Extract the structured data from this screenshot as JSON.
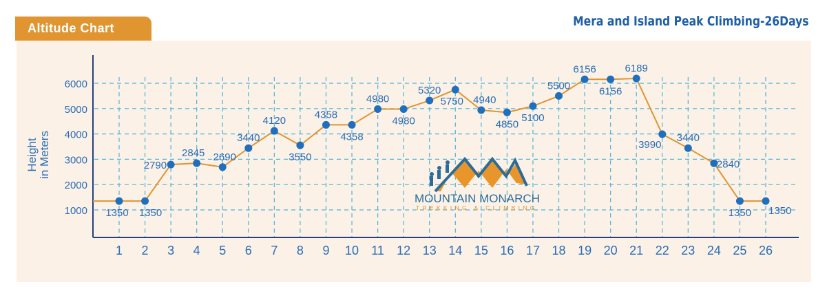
{
  "header": {
    "badge": "Altitude Chart",
    "title": "Mera and Island Peak Climbing-26Days"
  },
  "logo": {
    "name": "MOUNTAIN MONARCH",
    "tagline": "TREKKING & CLIMBING"
  },
  "colors": {
    "accent": "#e09530",
    "line": "#e09530",
    "point": "#1f6fbf",
    "text": "#2a6db5",
    "grid": "#4fb3d9",
    "background": "#fbf1e7"
  },
  "chart_data": {
    "type": "line",
    "title": "Mera and Island Peak Climbing-26Days",
    "xlabel": "",
    "ylabel": "Height in Meters",
    "ylabel_lines": [
      "Height",
      "in Meters"
    ],
    "x": [
      1,
      2,
      3,
      4,
      5,
      6,
      7,
      8,
      9,
      10,
      11,
      12,
      13,
      14,
      15,
      16,
      17,
      18,
      19,
      20,
      21,
      22,
      23,
      24,
      25,
      26
    ],
    "values": [
      1350,
      1350,
      2790,
      2845,
      2690,
      3440,
      4120,
      3550,
      4358,
      4358,
      4980,
      4980,
      5320,
      5750,
      4940,
      4850,
      5100,
      5500,
      6156,
      6156,
      6189,
      3990,
      3440,
      2840,
      1350,
      1350
    ],
    "yticks": [
      1000,
      2000,
      3000,
      4000,
      5000,
      6000
    ],
    "ylim": [
      0,
      7000
    ],
    "grid": true
  }
}
